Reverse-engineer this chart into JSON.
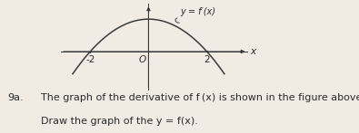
{
  "background_color": "#f0ece4",
  "curve_color": "#3a3a3a",
  "axis_color": "#3a3a3a",
  "text_color": "#2a2a2a",
  "label_text": "y = f′(x)",
  "x_ticks": [
    -2,
    2
  ],
  "x_tick_labels": [
    "-2",
    "2"
  ],
  "origin_label": "O",
  "xlim": [
    -3.0,
    3.4
  ],
  "ylim": [
    -1.8,
    2.2
  ],
  "curve_xmin": -2.6,
  "curve_xmax": 2.6,
  "curve_peak": 1.5,
  "curve_zero": 2.0,
  "annotation_9a": "9a.",
  "text_line1": "The graph of the derivative of f (x) is shown in the figure above.",
  "text_line2": "Draw the graph of the y = f(x).",
  "font_size_label": 7.0,
  "font_size_tick": 7.5,
  "font_size_body": 8.0
}
